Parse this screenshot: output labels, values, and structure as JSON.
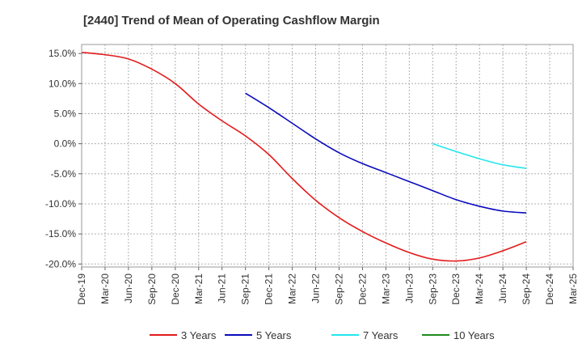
{
  "chart_data": {
    "type": "line",
    "title": "[2440]  Trend of Mean of Operating Cashflow Margin",
    "xlabel": "",
    "ylabel": "",
    "x_tick_labels": [
      "Dec-19",
      "Mar-20",
      "Jun-20",
      "Sep-20",
      "Dec-20",
      "Mar-21",
      "Jun-21",
      "Sep-21",
      "Dec-21",
      "Mar-22",
      "Jun-22",
      "Sep-22",
      "Dec-22",
      "Mar-23",
      "Jun-23",
      "Sep-23",
      "Dec-23",
      "Mar-24",
      "Jun-24",
      "Sep-24",
      "Dec-24",
      "Mar-25"
    ],
    "y_ticks": [
      15,
      10,
      5,
      0,
      -5,
      -10,
      -15,
      -20
    ],
    "y_tick_labels": [
      "15.0%",
      "10.0%",
      "5.0%",
      "0.0%",
      "-5.0%",
      "-10.0%",
      "-15.0%",
      "-20.0%"
    ],
    "ylim": [
      -20.5,
      16.5
    ],
    "grid": true,
    "legend_position": "bottom",
    "series": [
      {
        "name": "3 Years",
        "color": "#e31a1c",
        "x": [
          "Dec-19",
          "Mar-20",
          "Jun-20",
          "Sep-20",
          "Dec-20",
          "Mar-21",
          "Jun-21",
          "Sep-21",
          "Dec-21",
          "Mar-22",
          "Jun-22",
          "Sep-22",
          "Dec-22",
          "Mar-23",
          "Jun-23",
          "Sep-23",
          "Dec-23",
          "Mar-24",
          "Jun-24",
          "Sep-24"
        ],
        "values": [
          15.2,
          14.8,
          14.1,
          12.4,
          10.0,
          6.6,
          3.8,
          1.3,
          -1.8,
          -5.8,
          -9.4,
          -12.3,
          -14.6,
          -16.5,
          -18.1,
          -19.2,
          -19.5,
          -19.0,
          -17.8,
          -16.3
        ]
      },
      {
        "name": "5 Years",
        "color": "#0b0bbd",
        "x": [
          "Sep-21",
          "Dec-21",
          "Mar-22",
          "Jun-22",
          "Sep-22",
          "Dec-22",
          "Mar-23",
          "Jun-23",
          "Sep-23",
          "Dec-23",
          "Mar-24",
          "Jun-24",
          "Sep-24"
        ],
        "values": [
          8.4,
          6.0,
          3.4,
          0.8,
          -1.5,
          -3.3,
          -4.8,
          -6.3,
          -7.8,
          -9.3,
          -10.4,
          -11.2,
          -11.5
        ]
      },
      {
        "name": "7 Years",
        "color": "#22e6ee",
        "x": [
          "Sep-23",
          "Dec-23",
          "Mar-24",
          "Jun-24",
          "Sep-24"
        ],
        "values": [
          0.0,
          -1.3,
          -2.5,
          -3.5,
          -4.1
        ]
      },
      {
        "name": "10 Years",
        "color": "#1e8a1e",
        "x": [],
        "values": []
      }
    ]
  }
}
